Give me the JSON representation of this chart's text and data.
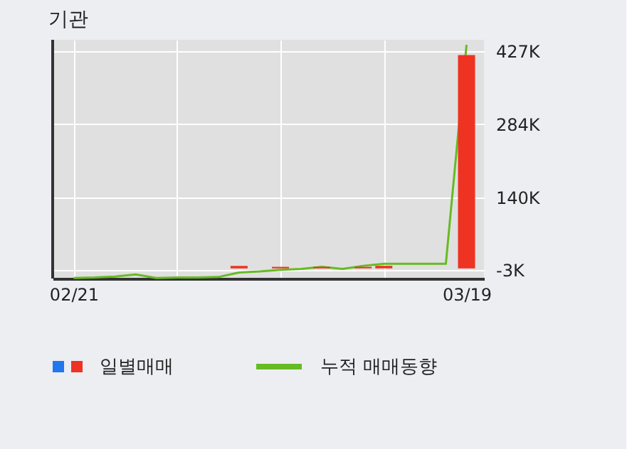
{
  "chart_data": {
    "type": "bar",
    "title": "기관",
    "categories": [
      "02/21",
      null,
      null,
      null,
      null,
      null,
      null,
      null,
      null,
      null,
      null,
      null,
      null,
      null,
      null,
      null,
      null,
      null,
      null,
      "03/19"
    ],
    "series": [
      {
        "name": "일별매매",
        "color": "#ee3322",
        "values": [
          null,
          null,
          null,
          null,
          null,
          null,
          null,
          null,
          5000,
          null,
          3000,
          null,
          3000,
          null,
          3000,
          5000,
          null,
          null,
          null,
          420000
        ]
      },
      {
        "name": "누적 매매동향",
        "type": "line",
        "color": "#66bb22",
        "values": [
          -19000,
          -18000,
          -16000,
          -12000,
          -19000,
          -18000,
          -18000,
          -17000,
          -8000,
          -6000,
          -3000,
          -1000,
          3000,
          -1000,
          5000,
          9000,
          9000,
          9000,
          9000,
          440000
        ]
      }
    ],
    "ylim": [
      -20000,
      450000
    ],
    "yticks": [
      {
        "value": -3000,
        "label": "-3K"
      },
      {
        "value": 140000,
        "label": "140K"
      },
      {
        "value": 284000,
        "label": "284K"
      },
      {
        "value": 427000,
        "label": "427K"
      }
    ],
    "grid": true,
    "legend": "bottom"
  }
}
